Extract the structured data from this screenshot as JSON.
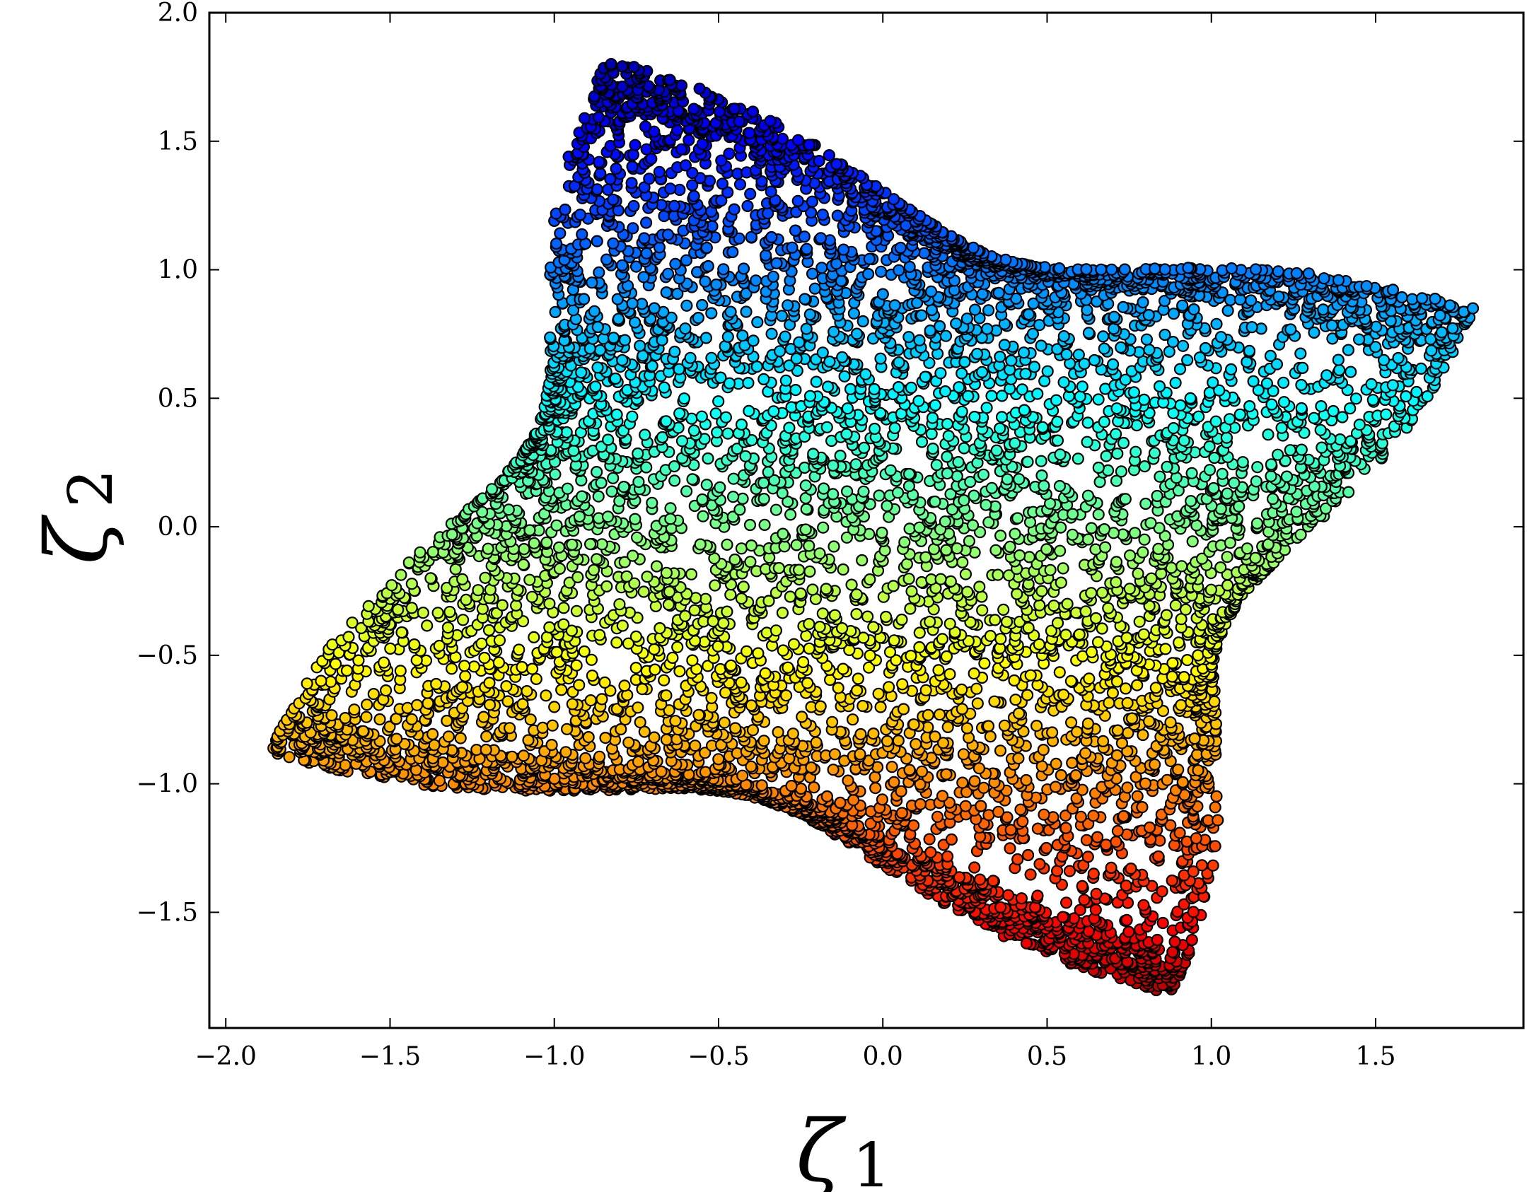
{
  "chart_data": {
    "type": "scatter",
    "title": "",
    "xlabel": "ζ",
    "xlabel_sub": "1",
    "ylabel": "ζ",
    "ylabel_sub": "2",
    "xlim": [
      -2.05,
      1.95
    ],
    "ylim": [
      -1.95,
      2.0
    ],
    "xticks": [
      "−2.0",
      "−1.5",
      "−1.0",
      "−0.5",
      "0.0",
      "0.5",
      "1.0",
      "1.5"
    ],
    "xtick_values": [
      -2.0,
      -1.5,
      -1.0,
      -0.5,
      0.0,
      0.5,
      1.0,
      1.5
    ],
    "yticks": [
      "2.0",
      "1.5",
      "1.0",
      "0.5",
      "0.0",
      "−0.5",
      "−1.0",
      "−1.5"
    ],
    "ytick_values": [
      2.0,
      1.5,
      1.0,
      0.5,
      0.0,
      -0.5,
      -1.0,
      -1.5
    ],
    "grid": false,
    "legend": "none",
    "colormap": "jet",
    "color_by": "ζ2",
    "region_corners": {
      "top": [
        -0.84,
        1.82
      ],
      "right": [
        1.8,
        0.85
      ],
      "bottom": [
        0.88,
        -1.82
      ],
      "left": [
        -1.87,
        -0.88
      ]
    },
    "region_edge_sag": 0.22,
    "point_count": 7500,
    "marker_edge_color": "#000000"
  }
}
